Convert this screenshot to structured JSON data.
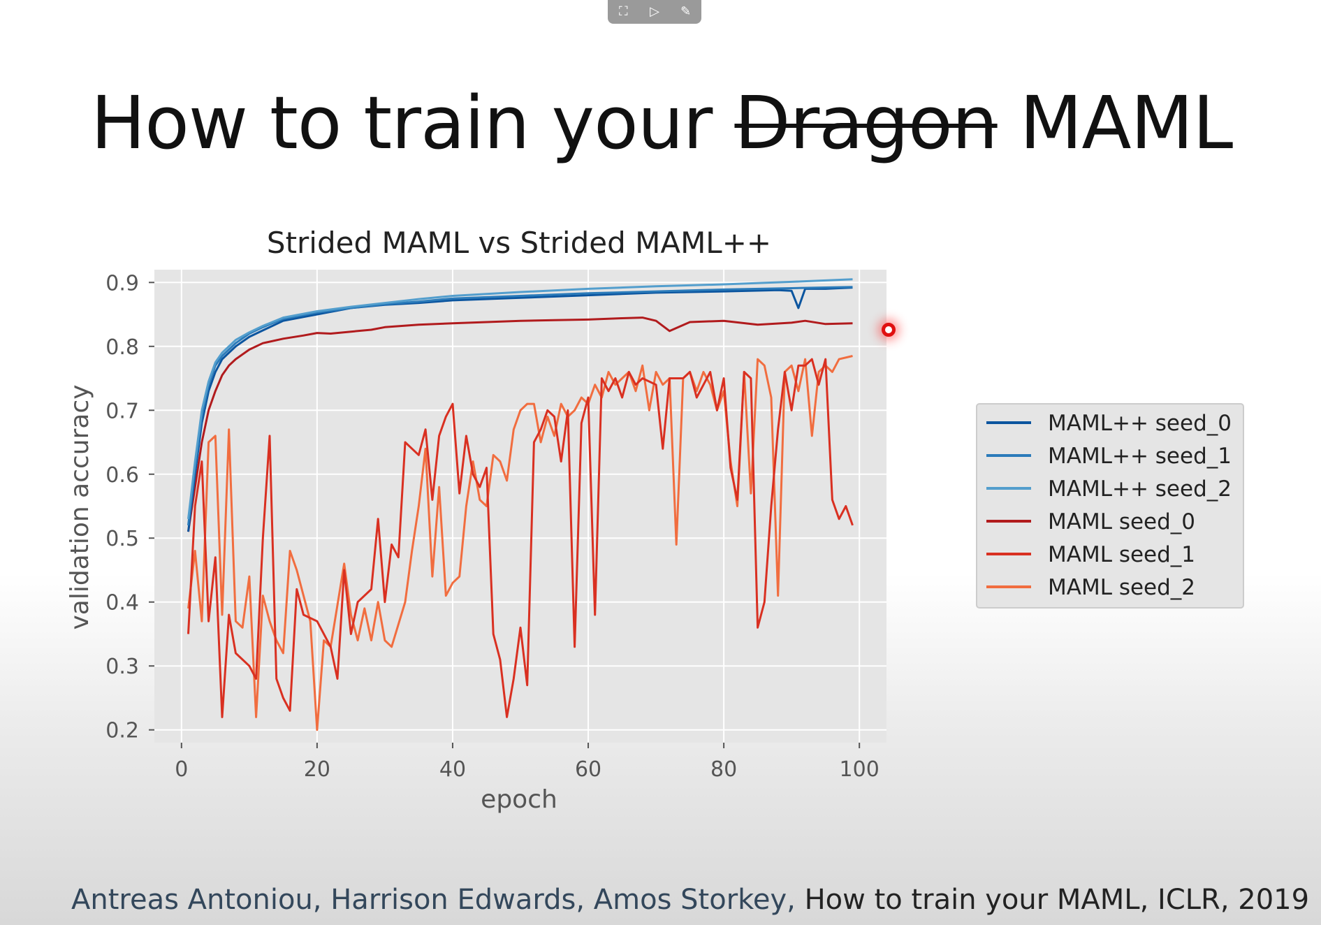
{
  "toolbar": {
    "buttons": [
      {
        "icon": "fit-screen-icon",
        "glyph": "⛶"
      },
      {
        "icon": "slide-play-icon",
        "glyph": "▷"
      },
      {
        "icon": "notes-edit-icon",
        "glyph": "✎"
      }
    ]
  },
  "slide": {
    "title_pre": "How to train your",
    "title_struck": "Dragon",
    "title_post": "MAML",
    "citation_authors": "Antreas Antoniou, Harrison Edwards, Amos Storkey,",
    "citation_rest": " How to train your MAML, ICLR, 2019"
  },
  "chart_data": {
    "type": "line",
    "title": "Strided MAML vs Strided MAML++",
    "xlabel": "epoch",
    "ylabel": "validation accuracy",
    "xlim": [
      -4,
      104
    ],
    "ylim": [
      0.18,
      0.92
    ],
    "xticks": [
      0,
      20,
      40,
      60,
      80,
      100
    ],
    "yticks": [
      0.2,
      0.3,
      0.4,
      0.5,
      0.6,
      0.7,
      0.8,
      0.9
    ],
    "grid": true,
    "legend_position": "right",
    "series": [
      {
        "name": "MAML++ seed_0",
        "color": "#0b559f",
        "points": [
          [
            1,
            0.51
          ],
          [
            2,
            0.6
          ],
          [
            3,
            0.68
          ],
          [
            4,
            0.73
          ],
          [
            5,
            0.76
          ],
          [
            6,
            0.78
          ],
          [
            8,
            0.8
          ],
          [
            10,
            0.815
          ],
          [
            12,
            0.825
          ],
          [
            15,
            0.84
          ],
          [
            20,
            0.85
          ],
          [
            25,
            0.86
          ],
          [
            30,
            0.865
          ],
          [
            35,
            0.868
          ],
          [
            40,
            0.872
          ],
          [
            50,
            0.876
          ],
          [
            60,
            0.88
          ],
          [
            70,
            0.884
          ],
          [
            80,
            0.886
          ],
          [
            88,
            0.888
          ],
          [
            90,
            0.887
          ],
          [
            91,
            0.86
          ],
          [
            92,
            0.89
          ],
          [
            95,
            0.89
          ],
          [
            99,
            0.892
          ]
        ]
      },
      {
        "name": "MAML++ seed_1",
        "color": "#2b7bba",
        "points": [
          [
            1,
            0.52
          ],
          [
            2,
            0.61
          ],
          [
            3,
            0.69
          ],
          [
            4,
            0.74
          ],
          [
            5,
            0.77
          ],
          [
            6,
            0.785
          ],
          [
            8,
            0.805
          ],
          [
            10,
            0.82
          ],
          [
            12,
            0.83
          ],
          [
            15,
            0.843
          ],
          [
            20,
            0.853
          ],
          [
            25,
            0.86
          ],
          [
            30,
            0.866
          ],
          [
            35,
            0.87
          ],
          [
            40,
            0.875
          ],
          [
            50,
            0.879
          ],
          [
            60,
            0.883
          ],
          [
            70,
            0.886
          ],
          [
            80,
            0.889
          ],
          [
            90,
            0.891
          ],
          [
            99,
            0.893
          ]
        ]
      },
      {
        "name": "MAML++ seed_2",
        "color": "#539ecd",
        "points": [
          [
            1,
            0.53
          ],
          [
            2,
            0.62
          ],
          [
            3,
            0.7
          ],
          [
            4,
            0.745
          ],
          [
            5,
            0.775
          ],
          [
            6,
            0.79
          ],
          [
            8,
            0.81
          ],
          [
            10,
            0.822
          ],
          [
            12,
            0.832
          ],
          [
            15,
            0.845
          ],
          [
            20,
            0.855
          ],
          [
            25,
            0.862
          ],
          [
            30,
            0.868
          ],
          [
            35,
            0.874
          ],
          [
            40,
            0.879
          ],
          [
            50,
            0.885
          ],
          [
            60,
            0.89
          ],
          [
            70,
            0.894
          ],
          [
            80,
            0.897
          ],
          [
            90,
            0.901
          ],
          [
            99,
            0.905
          ]
        ]
      },
      {
        "name": "MAML seed_0",
        "color": "#b11b1d",
        "points": [
          [
            1,
            0.51
          ],
          [
            2,
            0.58
          ],
          [
            3,
            0.65
          ],
          [
            4,
            0.7
          ],
          [
            5,
            0.73
          ],
          [
            6,
            0.755
          ],
          [
            7,
            0.77
          ],
          [
            8,
            0.78
          ],
          [
            10,
            0.795
          ],
          [
            12,
            0.805
          ],
          [
            15,
            0.812
          ],
          [
            18,
            0.817
          ],
          [
            20,
            0.821
          ],
          [
            22,
            0.82
          ],
          [
            25,
            0.823
          ],
          [
            28,
            0.826
          ],
          [
            30,
            0.83
          ],
          [
            35,
            0.834
          ],
          [
            40,
            0.836
          ],
          [
            45,
            0.838
          ],
          [
            50,
            0.84
          ],
          [
            55,
            0.841
          ],
          [
            60,
            0.842
          ],
          [
            65,
            0.844
          ],
          [
            68,
            0.845
          ],
          [
            70,
            0.84
          ],
          [
            72,
            0.824
          ],
          [
            75,
            0.838
          ],
          [
            80,
            0.84
          ],
          [
            85,
            0.834
          ],
          [
            90,
            0.837
          ],
          [
            92,
            0.84
          ],
          [
            95,
            0.835
          ],
          [
            99,
            0.836
          ]
        ]
      },
      {
        "name": "MAML seed_1",
        "color": "#d93021",
        "points": [
          [
            1,
            0.35
          ],
          [
            2,
            0.55
          ],
          [
            3,
            0.62
          ],
          [
            4,
            0.37
          ],
          [
            5,
            0.47
          ],
          [
            6,
            0.22
          ],
          [
            7,
            0.38
          ],
          [
            8,
            0.32
          ],
          [
            10,
            0.3
          ],
          [
            11,
            0.28
          ],
          [
            12,
            0.5
          ],
          [
            13,
            0.66
          ],
          [
            14,
            0.28
          ],
          [
            15,
            0.25
          ],
          [
            16,
            0.23
          ],
          [
            17,
            0.42
          ],
          [
            18,
            0.38
          ],
          [
            20,
            0.37
          ],
          [
            22,
            0.33
          ],
          [
            23,
            0.28
          ],
          [
            24,
            0.45
          ],
          [
            25,
            0.35
          ],
          [
            26,
            0.4
          ],
          [
            28,
            0.42
          ],
          [
            29,
            0.53
          ],
          [
            30,
            0.4
          ],
          [
            31,
            0.49
          ],
          [
            32,
            0.47
          ],
          [
            33,
            0.65
          ],
          [
            34,
            0.64
          ],
          [
            35,
            0.63
          ],
          [
            36,
            0.67
          ],
          [
            37,
            0.56
          ],
          [
            38,
            0.66
          ],
          [
            39,
            0.69
          ],
          [
            40,
            0.71
          ],
          [
            41,
            0.57
          ],
          [
            42,
            0.66
          ],
          [
            43,
            0.6
          ],
          [
            44,
            0.58
          ],
          [
            45,
            0.61
          ],
          [
            46,
            0.35
          ],
          [
            47,
            0.31
          ],
          [
            48,
            0.22
          ],
          [
            49,
            0.28
          ],
          [
            50,
            0.36
          ],
          [
            51,
            0.27
          ],
          [
            52,
            0.65
          ],
          [
            53,
            0.67
          ],
          [
            54,
            0.7
          ],
          [
            55,
            0.69
          ],
          [
            56,
            0.62
          ],
          [
            57,
            0.7
          ],
          [
            58,
            0.33
          ],
          [
            59,
            0.68
          ],
          [
            60,
            0.72
          ],
          [
            61,
            0.38
          ],
          [
            62,
            0.75
          ],
          [
            63,
            0.73
          ],
          [
            64,
            0.75
          ],
          [
            65,
            0.72
          ],
          [
            66,
            0.76
          ],
          [
            67,
            0.74
          ],
          [
            68,
            0.75
          ],
          [
            70,
            0.74
          ],
          [
            71,
            0.64
          ],
          [
            72,
            0.75
          ],
          [
            74,
            0.75
          ],
          [
            75,
            0.76
          ],
          [
            76,
            0.72
          ],
          [
            78,
            0.76
          ],
          [
            79,
            0.7
          ],
          [
            80,
            0.75
          ],
          [
            81,
            0.61
          ],
          [
            82,
            0.56
          ],
          [
            83,
            0.76
          ],
          [
            84,
            0.75
          ],
          [
            85,
            0.36
          ],
          [
            86,
            0.4
          ],
          [
            87,
            0.55
          ],
          [
            88,
            0.67
          ],
          [
            89,
            0.76
          ],
          [
            90,
            0.7
          ],
          [
            91,
            0.77
          ],
          [
            92,
            0.77
          ],
          [
            93,
            0.78
          ],
          [
            94,
            0.74
          ],
          [
            95,
            0.78
          ],
          [
            96,
            0.56
          ],
          [
            97,
            0.53
          ],
          [
            98,
            0.55
          ],
          [
            99,
            0.52
          ]
        ]
      },
      {
        "name": "MAML seed_2",
        "color": "#f16d3f",
        "points": [
          [
            1,
            0.39
          ],
          [
            2,
            0.48
          ],
          [
            3,
            0.37
          ],
          [
            4,
            0.65
          ],
          [
            5,
            0.66
          ],
          [
            6,
            0.38
          ],
          [
            7,
            0.67
          ],
          [
            8,
            0.37
          ],
          [
            9,
            0.36
          ],
          [
            10,
            0.44
          ],
          [
            11,
            0.22
          ],
          [
            12,
            0.41
          ],
          [
            13,
            0.37
          ],
          [
            14,
            0.34
          ],
          [
            15,
            0.32
          ],
          [
            16,
            0.48
          ],
          [
            17,
            0.45
          ],
          [
            18,
            0.41
          ],
          [
            19,
            0.37
          ],
          [
            20,
            0.2
          ],
          [
            21,
            0.34
          ],
          [
            22,
            0.33
          ],
          [
            24,
            0.46
          ],
          [
            25,
            0.38
          ],
          [
            26,
            0.34
          ],
          [
            27,
            0.39
          ],
          [
            28,
            0.34
          ],
          [
            29,
            0.4
          ],
          [
            30,
            0.34
          ],
          [
            31,
            0.33
          ],
          [
            33,
            0.4
          ],
          [
            34,
            0.48
          ],
          [
            35,
            0.55
          ],
          [
            36,
            0.64
          ],
          [
            37,
            0.44
          ],
          [
            38,
            0.58
          ],
          [
            39,
            0.41
          ],
          [
            40,
            0.43
          ],
          [
            41,
            0.44
          ],
          [
            42,
            0.55
          ],
          [
            43,
            0.62
          ],
          [
            44,
            0.56
          ],
          [
            45,
            0.55
          ],
          [
            46,
            0.63
          ],
          [
            47,
            0.62
          ],
          [
            48,
            0.59
          ],
          [
            49,
            0.67
          ],
          [
            50,
            0.7
          ],
          [
            51,
            0.71
          ],
          [
            52,
            0.71
          ],
          [
            53,
            0.65
          ],
          [
            54,
            0.69
          ],
          [
            55,
            0.66
          ],
          [
            56,
            0.71
          ],
          [
            57,
            0.69
          ],
          [
            58,
            0.7
          ],
          [
            59,
            0.72
          ],
          [
            60,
            0.71
          ],
          [
            61,
            0.74
          ],
          [
            62,
            0.72
          ],
          [
            63,
            0.76
          ],
          [
            64,
            0.74
          ],
          [
            65,
            0.75
          ],
          [
            66,
            0.76
          ],
          [
            67,
            0.73
          ],
          [
            68,
            0.77
          ],
          [
            69,
            0.7
          ],
          [
            70,
            0.76
          ],
          [
            71,
            0.74
          ],
          [
            72,
            0.75
          ],
          [
            73,
            0.49
          ],
          [
            74,
            0.75
          ],
          [
            75,
            0.76
          ],
          [
            76,
            0.73
          ],
          [
            77,
            0.76
          ],
          [
            78,
            0.74
          ],
          [
            79,
            0.7
          ],
          [
            80,
            0.73
          ],
          [
            81,
            0.62
          ],
          [
            82,
            0.55
          ],
          [
            83,
            0.76
          ],
          [
            84,
            0.57
          ],
          [
            85,
            0.78
          ],
          [
            86,
            0.77
          ],
          [
            87,
            0.72
          ],
          [
            88,
            0.41
          ],
          [
            89,
            0.76
          ],
          [
            90,
            0.77
          ],
          [
            91,
            0.73
          ],
          [
            92,
            0.78
          ],
          [
            93,
            0.66
          ],
          [
            94,
            0.76
          ],
          [
            95,
            0.77
          ],
          [
            96,
            0.76
          ],
          [
            97,
            0.78
          ],
          [
            99,
            0.785
          ]
        ]
      }
    ]
  }
}
